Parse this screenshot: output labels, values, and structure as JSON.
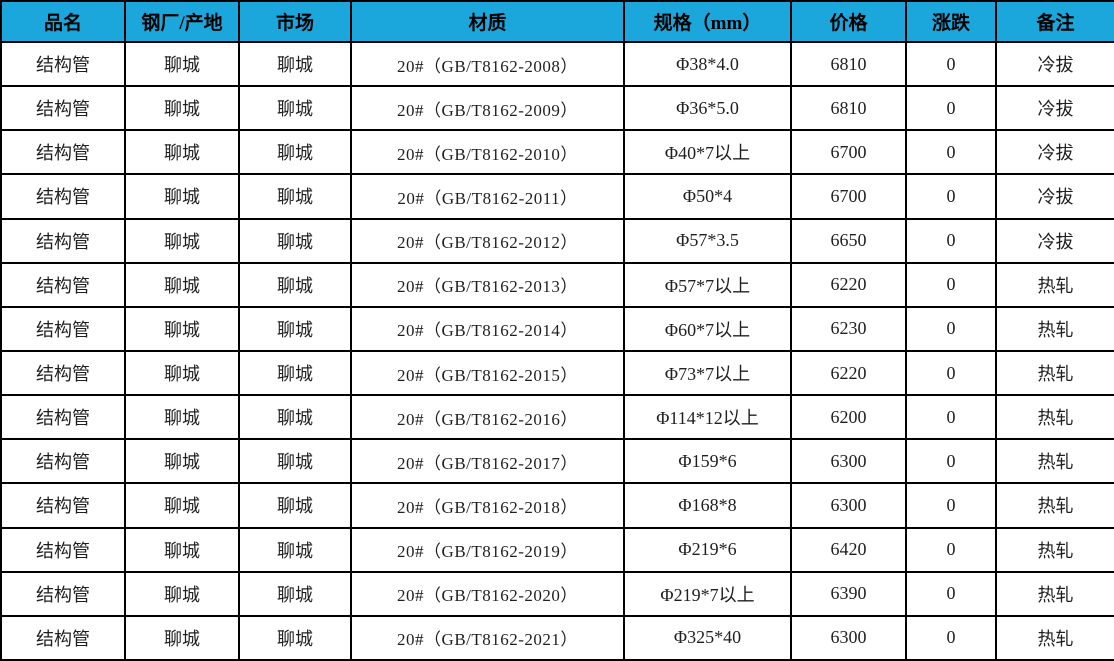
{
  "colors": {
    "header_bg": "#1ba6dc",
    "border": "#000000",
    "text": "#1f1f1f",
    "header_text": "#000000",
    "row_bg": "#ffffff"
  },
  "table": {
    "columns": [
      "品名",
      "钢厂/产地",
      "市场",
      "材质",
      "规格（mm）",
      "价格",
      "涨跌",
      "备注"
    ],
    "row_keys": [
      "name",
      "origin",
      "market",
      "material",
      "spec",
      "price",
      "change",
      "remark"
    ],
    "rows": [
      {
        "name": "结构管",
        "origin": "聊城",
        "market": "聊城",
        "material": "20#（GB/T8162-2008）",
        "spec": "Φ38*4.0",
        "price": "6810",
        "change": "0",
        "remark": "冷拔"
      },
      {
        "name": "结构管",
        "origin": "聊城",
        "market": "聊城",
        "material": "20#（GB/T8162-2009）",
        "spec": "Φ36*5.0",
        "price": "6810",
        "change": "0",
        "remark": "冷拔"
      },
      {
        "name": "结构管",
        "origin": "聊城",
        "market": "聊城",
        "material": "20#（GB/T8162-2010）",
        "spec": "Φ40*7以上",
        "price": "6700",
        "change": "0",
        "remark": "冷拔"
      },
      {
        "name": "结构管",
        "origin": "聊城",
        "market": "聊城",
        "material": "20#（GB/T8162-2011）",
        "spec": "Φ50*4",
        "price": "6700",
        "change": "0",
        "remark": "冷拔"
      },
      {
        "name": "结构管",
        "origin": "聊城",
        "market": "聊城",
        "material": "20#（GB/T8162-2012）",
        "spec": "Φ57*3.5",
        "price": "6650",
        "change": "0",
        "remark": "冷拔"
      },
      {
        "name": "结构管",
        "origin": "聊城",
        "market": "聊城",
        "material": "20#（GB/T8162-2013）",
        "spec": "Φ57*7以上",
        "price": "6220",
        "change": "0",
        "remark": "热轧"
      },
      {
        "name": "结构管",
        "origin": "聊城",
        "market": "聊城",
        "material": "20#（GB/T8162-2014）",
        "spec": "Φ60*7以上",
        "price": "6230",
        "change": "0",
        "remark": "热轧"
      },
      {
        "name": "结构管",
        "origin": "聊城",
        "market": "聊城",
        "material": "20#（GB/T8162-2015）",
        "spec": "Φ73*7以上",
        "price": "6220",
        "change": "0",
        "remark": "热轧"
      },
      {
        "name": "结构管",
        "origin": "聊城",
        "market": "聊城",
        "material": "20#（GB/T8162-2016）",
        "spec": "Φ114*12以上",
        "price": "6200",
        "change": "0",
        "remark": "热轧"
      },
      {
        "name": "结构管",
        "origin": "聊城",
        "market": "聊城",
        "material": "20#（GB/T8162-2017）",
        "spec": "Φ159*6",
        "price": "6300",
        "change": "0",
        "remark": "热轧"
      },
      {
        "name": "结构管",
        "origin": "聊城",
        "market": "聊城",
        "material": "20#（GB/T8162-2018）",
        "spec": "Φ168*8",
        "price": "6300",
        "change": "0",
        "remark": "热轧"
      },
      {
        "name": "结构管",
        "origin": "聊城",
        "market": "聊城",
        "material": "20#（GB/T8162-2019）",
        "spec": "Φ219*6",
        "price": "6420",
        "change": "0",
        "remark": "热轧"
      },
      {
        "name": "结构管",
        "origin": "聊城",
        "market": "聊城",
        "material": "20#（GB/T8162-2020）",
        "spec": "Φ219*7以上",
        "price": "6390",
        "change": "0",
        "remark": "热轧"
      },
      {
        "name": "结构管",
        "origin": "聊城",
        "market": "聊城",
        "material": "20#（GB/T8162-2021）",
        "spec": "Φ325*40",
        "price": "6300",
        "change": "0",
        "remark": "热轧"
      }
    ]
  }
}
